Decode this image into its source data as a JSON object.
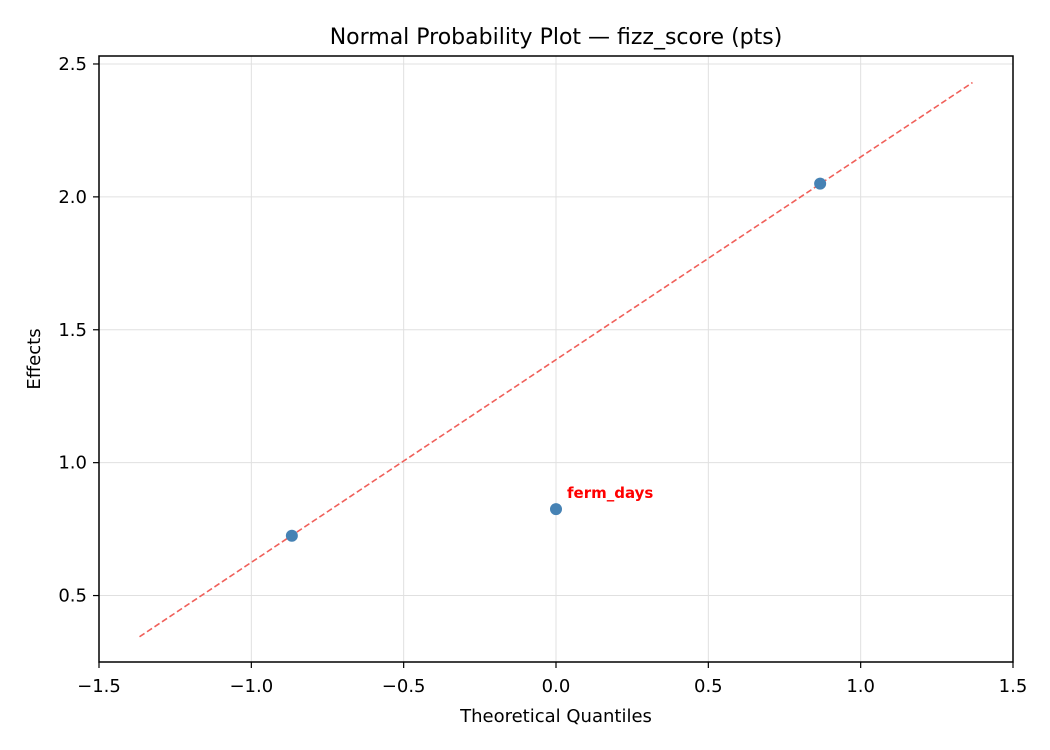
{
  "chart_data": {
    "type": "scatter",
    "title": "Normal Probability Plot — fizz_score (pts)",
    "xlabel": "Theoretical Quantiles",
    "ylabel": "Effects",
    "xlim": [
      -1.5,
      1.5
    ],
    "ylim": [
      0.25,
      2.53
    ],
    "xticks": [
      -1.5,
      -1.0,
      -0.5,
      0.0,
      0.5,
      1.0,
      1.5
    ],
    "xtick_labels": [
      "−1.5",
      "−1.0",
      "−0.5",
      "0.0",
      "0.5",
      "1.0",
      "1.5"
    ],
    "yticks": [
      0.5,
      1.0,
      1.5,
      2.0,
      2.5
    ],
    "ytick_labels": [
      "0.5",
      "1.0",
      "1.5",
      "2.0",
      "2.5"
    ],
    "grid": true,
    "points": [
      {
        "x": -0.867,
        "y": 0.725
      },
      {
        "x": 0.0,
        "y": 0.825
      },
      {
        "x": 0.867,
        "y": 2.05
      }
    ],
    "reference_line": {
      "x": [
        -1.367,
        1.367
      ],
      "y": [
        0.345,
        2.43
      ],
      "style": "dashed",
      "color": "#f0605a"
    },
    "annotations": [
      {
        "text": "ferm_days",
        "x": 0.0,
        "y": 0.825,
        "color": "#ff0000"
      }
    ],
    "colors": {
      "points": "#4682b4",
      "reference_line": "#f0605a",
      "annotation": "#ff0000",
      "grid": "#e0e0e0"
    }
  }
}
